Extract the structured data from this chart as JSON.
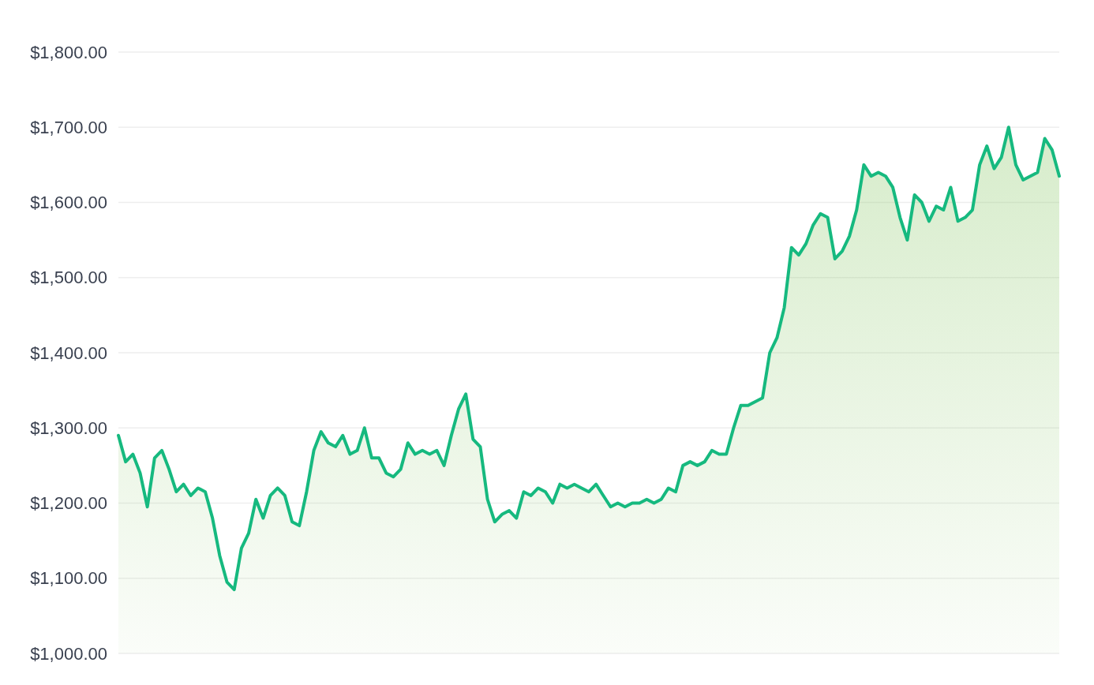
{
  "chart_data": {
    "type": "area",
    "categories": [
      null,
      null,
      null,
      null,
      null,
      null,
      null,
      null,
      null,
      null,
      null,
      null,
      null,
      null,
      null,
      null,
      null,
      null,
      null,
      null,
      null,
      null,
      null,
      null,
      null,
      null,
      null,
      null,
      null,
      null,
      null,
      null,
      null,
      null,
      null,
      null,
      null,
      null,
      null,
      null,
      null,
      null,
      null,
      null,
      null,
      null,
      null,
      null,
      null,
      null,
      null,
      null,
      null,
      null,
      null,
      null,
      null,
      null,
      null,
      null,
      null,
      null,
      null,
      null,
      null,
      null,
      null,
      null,
      null,
      null,
      null,
      null,
      null,
      null,
      null,
      null,
      null,
      null,
      null,
      null,
      null,
      null,
      null,
      null,
      null,
      null,
      null,
      null,
      null,
      null,
      null,
      null,
      null,
      null,
      null,
      null,
      null,
      null,
      null,
      null,
      null,
      null,
      null,
      null,
      null,
      null,
      null,
      null,
      null,
      null,
      null,
      null,
      null,
      null,
      null,
      null,
      null,
      null,
      null,
      null,
      null,
      null,
      null,
      null,
      null,
      null,
      null,
      null,
      null,
      null,
      null
    ],
    "series": [
      {
        "color": "#16b97f",
        "values": [
          1290,
          1255,
          1265,
          1240,
          1195,
          1260,
          1270,
          1245,
          1215,
          1225,
          1210,
          1220,
          1215,
          1180,
          1130,
          1095,
          1085,
          1140,
          1160,
          1205,
          1180,
          1210,
          1220,
          1210,
          1175,
          1170,
          1215,
          1270,
          1295,
          1280,
          1275,
          1290,
          1265,
          1270,
          1300,
          1260,
          1260,
          1240,
          1235,
          1245,
          1280,
          1265,
          1270,
          1265,
          1270,
          1250,
          1290,
          1325,
          1345,
          1285,
          1275,
          1205,
          1175,
          1185,
          1190,
          1180,
          1215,
          1210,
          1220,
          1215,
          1200,
          1225,
          1220,
          1225,
          1220,
          1215,
          1225,
          1210,
          1195,
          1200,
          1195,
          1200,
          1200,
          1205,
          1200,
          1205,
          1220,
          1215,
          1250,
          1255,
          1250,
          1255,
          1270,
          1265,
          1265,
          1300,
          1330,
          1330,
          1335,
          1340,
          1400,
          1420,
          1460,
          1540,
          1530,
          1545,
          1570,
          1585,
          1580,
          1525,
          1535,
          1555,
          1590,
          1650,
          1635,
          1640,
          1635,
          1620,
          1580,
          1550,
          1610,
          1600,
          1575,
          1595,
          1590,
          1620,
          1575,
          1580,
          1590,
          1650,
          1675,
          1645,
          1660,
          1700,
          1650,
          1630,
          1635,
          1640,
          1685,
          1670,
          1635
        ]
      }
    ],
    "ylim": [
      1000,
      1800
    ],
    "yticks": [
      {
        "value": 1000,
        "label": "$1,000.00"
      },
      {
        "value": 1100,
        "label": "$1,100.00"
      },
      {
        "value": 1200,
        "label": "$1,200.00"
      },
      {
        "value": 1300,
        "label": "$1,300.00"
      },
      {
        "value": 1400,
        "label": "$1,400.00"
      },
      {
        "value": 1500,
        "label": "$1,500.00"
      },
      {
        "value": 1600,
        "label": "$1,600.00"
      },
      {
        "value": 1700,
        "label": "$1,700.00"
      },
      {
        "value": 1800,
        "label": "$1,800.00"
      }
    ],
    "grid": "y",
    "tick_labels": "y"
  }
}
